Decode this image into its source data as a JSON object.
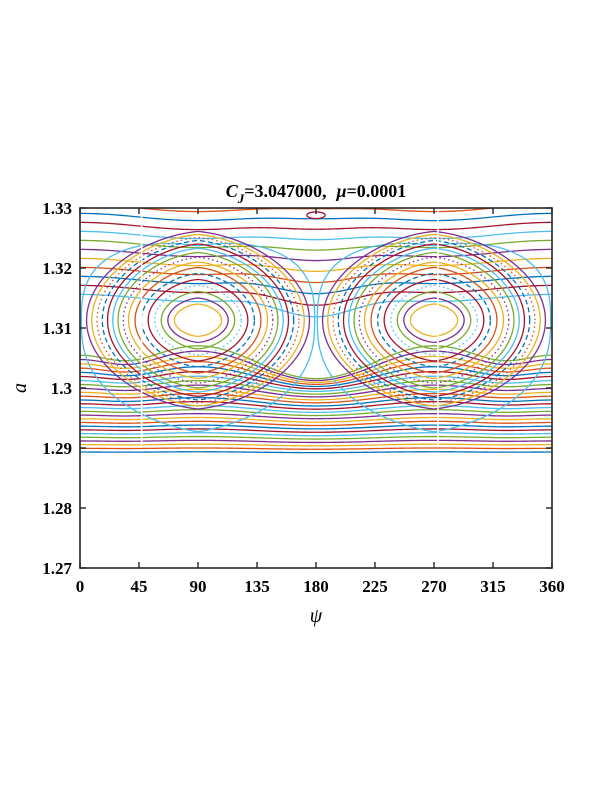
{
  "chart_data": {
    "type": "line",
    "title": "C_J=3.047000,  μ=0.0001",
    "title_parts": {
      "c": "C",
      "c_sub": "J",
      "c_value": "=3.047000,",
      "mu": "μ",
      "mu_value": "=0.0001"
    },
    "xlabel": "ψ",
    "ylabel": "a",
    "xlim": [
      0,
      360
    ],
    "ylim": [
      1.27,
      1.33
    ],
    "xticks": [
      0,
      45,
      90,
      135,
      180,
      225,
      270,
      315,
      360
    ],
    "yticks": [
      1.27,
      1.28,
      1.29,
      1.3,
      1.31,
      1.32,
      1.33
    ],
    "xtick_labels": [
      "0",
      "45",
      "90",
      "135",
      "180",
      "225",
      "270",
      "315",
      "360"
    ],
    "ytick_labels": [
      "1.27",
      "1.28",
      "1.29",
      "1.3",
      "1.31",
      "1.32",
      "1.33"
    ],
    "grid": false,
    "legend": "none",
    "separatrix_color": "#4DBEEE",
    "color_cycle": [
      "#0072BD",
      "#D95319",
      "#EDB120",
      "#7E2F8E",
      "#77AC30",
      "#4DBEEE",
      "#A2142F"
    ],
    "series_description": {
      "libration_centers_psi": [
        90,
        270
      ],
      "libration_center_a": 1.3113,
      "separatrix_a_at_0_180": 1.3082,
      "circulating_lower_a_range": [
        1.2893,
        1.3045
      ],
      "circulating_upper_a_range": [
        1.315,
        1.3305
      ]
    },
    "libration_amplitudes": [
      {
        "dpsi": 18,
        "da": 0.0027
      },
      {
        "dpsi": 23,
        "da": 0.0037
      },
      {
        "dpsi": 28,
        "da": 0.0048
      },
      {
        "dpsi": 33,
        "da": 0.0058
      },
      {
        "dpsi": 38,
        "da": 0.0068
      },
      {
        "dpsi": 43,
        "da": 0.0078
      },
      {
        "dpsi": 48,
        "da": 0.0088
      },
      {
        "dpsi": 53,
        "da": 0.0097
      },
      {
        "dpsi": 57,
        "da": 0.0105
      },
      {
        "dpsi": 61,
        "da": 0.0113
      },
      {
        "dpsi": 65,
        "da": 0.012
      },
      {
        "dpsi": 69,
        "da": 0.0127
      },
      {
        "dpsi": 73,
        "da": 0.0133
      },
      {
        "dpsi": 77,
        "da": 0.0138
      },
      {
        "dpsi": 81,
        "da": 0.0143
      },
      {
        "dpsi": 85,
        "da": 0.0148
      }
    ],
    "lower_circulating": [
      {
        "base": 1.2893,
        "amp": 0.0002
      },
      {
        "base": 1.2899,
        "amp": 0.0003
      },
      {
        "base": 1.2905,
        "amp": 0.0004
      },
      {
        "base": 1.2911,
        "amp": 0.0005
      },
      {
        "base": 1.2917,
        "amp": 0.0006
      },
      {
        "base": 1.2923,
        "amp": 0.0007
      },
      {
        "base": 1.2929,
        "amp": 0.0008
      },
      {
        "base": 1.2935,
        "amp": 0.0009
      },
      {
        "base": 1.2941,
        "amp": 0.001
      },
      {
        "base": 1.2947,
        "amp": 0.0011
      },
      {
        "base": 1.2953,
        "amp": 0.0012
      },
      {
        "base": 1.2959,
        "amp": 0.0014
      },
      {
        "base": 1.2965,
        "amp": 0.0016
      },
      {
        "base": 1.2971,
        "amp": 0.0018
      },
      {
        "base": 1.2977,
        "amp": 0.002
      },
      {
        "base": 1.2983,
        "amp": 0.0022
      },
      {
        "base": 1.2989,
        "amp": 0.0025
      },
      {
        "base": 1.2995,
        "amp": 0.0028
      },
      {
        "base": 1.3001,
        "amp": 0.0032
      },
      {
        "base": 1.3007,
        "amp": 0.0036
      },
      {
        "base": 1.3013,
        "amp": 0.0041
      },
      {
        "base": 1.3019,
        "amp": 0.0047
      },
      {
        "base": 1.3025,
        "amp": 0.0054
      },
      {
        "base": 1.3031,
        "amp": 0.0062
      },
      {
        "base": 1.3037,
        "amp": 0.007
      },
      {
        "base": 1.3043,
        "amp": 0.0078
      }
    ],
    "upper_circulating": [
      {
        "base": 1.315,
        "amp": -0.0062
      },
      {
        "base": 1.3165,
        "amp": -0.0055
      },
      {
        "base": 1.318,
        "amp": -0.0048
      },
      {
        "base": 1.3195,
        "amp": -0.0042
      },
      {
        "base": 1.321,
        "amp": -0.0036
      },
      {
        "base": 1.3225,
        "amp": -0.0031
      },
      {
        "base": 1.324,
        "amp": -0.0027
      },
      {
        "base": 1.3255,
        "amp": -0.0023
      },
      {
        "base": 1.327,
        "amp": -0.0019
      },
      {
        "base": 1.3285,
        "amp": -0.0015
      },
      {
        "base": 1.33,
        "amp": -0.0012
      }
    ]
  }
}
